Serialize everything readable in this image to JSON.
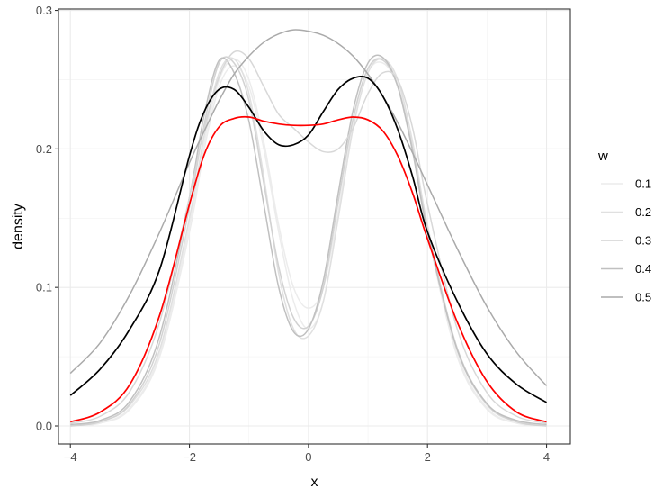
{
  "chart_data": {
    "type": "line",
    "xlabel": "x",
    "ylabel": "density",
    "xlim": [
      -4.2,
      4.4
    ],
    "ylim": [
      -0.013,
      0.301
    ],
    "x_ticks": [
      -4,
      -2,
      0,
      2,
      4
    ],
    "x_tick_labels": [
      "−4",
      "−2",
      "0",
      "2",
      "4"
    ],
    "y_ticks": [
      0.0,
      0.1,
      0.2,
      0.3
    ],
    "y_tick_labels": [
      "0.0",
      "0.1",
      "0.2",
      "0.3"
    ],
    "grid": true,
    "legend": {
      "title": "w",
      "position": "right",
      "entries": [
        {
          "label": "0.1",
          "color": "#ececec"
        },
        {
          "label": "0.2",
          "color": "#e0e0e0"
        },
        {
          "label": "0.3",
          "color": "#d2d2d2"
        },
        {
          "label": "0.4",
          "color": "#c0c0c0"
        },
        {
          "label": "0.5",
          "color": "#aaaaaa"
        }
      ]
    },
    "x": [
      -4,
      -3.5,
      -3,
      -2.5,
      -2,
      -1.75,
      -1.5,
      -1.25,
      -1,
      -0.75,
      -0.5,
      -0.25,
      0,
      0.25,
      0.5,
      0.75,
      1,
      1.25,
      1.5,
      1.75,
      2,
      2.5,
      3,
      3.5,
      4
    ],
    "series": [
      {
        "w": "0.1",
        "color": "#ececec",
        "values": [
          0.0,
          0.002,
          0.012,
          0.05,
          0.14,
          0.2,
          0.245,
          0.26,
          0.245,
          0.2,
          0.14,
          0.09,
          0.07,
          0.09,
          0.15,
          0.215,
          0.255,
          0.262,
          0.245,
          0.2,
          0.14,
          0.05,
          0.012,
          0.002,
          0.0
        ]
      },
      {
        "w": "0.1",
        "color": "#ececec",
        "values": [
          0.0,
          0.002,
          0.013,
          0.052,
          0.145,
          0.205,
          0.25,
          0.265,
          0.25,
          0.205,
          0.145,
          0.1,
          0.085,
          0.1,
          0.155,
          0.22,
          0.258,
          0.265,
          0.248,
          0.203,
          0.143,
          0.052,
          0.013,
          0.002,
          0.0
        ]
      },
      {
        "w": "0.2",
        "color": "#e0e0e0",
        "values": [
          0.0,
          0.003,
          0.015,
          0.055,
          0.15,
          0.21,
          0.255,
          0.265,
          0.24,
          0.18,
          0.11,
          0.07,
          0.065,
          0.09,
          0.15,
          0.215,
          0.255,
          0.265,
          0.25,
          0.205,
          0.145,
          0.055,
          0.015,
          0.003,
          0.0
        ]
      },
      {
        "w": "0.3",
        "color": "#d2d2d2",
        "values": [
          0.0,
          0.003,
          0.016,
          0.06,
          0.158,
          0.218,
          0.262,
          0.262,
          0.235,
          0.175,
          0.115,
          0.078,
          0.072,
          0.1,
          0.162,
          0.222,
          0.258,
          0.264,
          0.245,
          0.2,
          0.142,
          0.056,
          0.016,
          0.003,
          0.0
        ]
      },
      {
        "w": "0.4",
        "color": "#c0c0c0",
        "values": [
          0.001,
          0.004,
          0.018,
          0.065,
          0.165,
          0.225,
          0.264,
          0.255,
          0.22,
          0.16,
          0.1,
          0.068,
          0.07,
          0.105,
          0.168,
          0.228,
          0.262,
          0.266,
          0.245,
          0.198,
          0.14,
          0.055,
          0.016,
          0.004,
          0.001
        ]
      },
      {
        "w": "0.4",
        "color": "#d8d8d8",
        "values": [
          0.002,
          0.007,
          0.025,
          0.075,
          0.165,
          0.215,
          0.252,
          0.27,
          0.265,
          0.245,
          0.225,
          0.215,
          0.205,
          0.198,
          0.2,
          0.215,
          0.24,
          0.255,
          0.25,
          0.215,
          0.16,
          0.07,
          0.024,
          0.007,
          0.002
        ]
      },
      {
        "w": "0.5",
        "color": "#aaaaaa",
        "values": [
          0.038,
          0.06,
          0.095,
          0.14,
          0.19,
          0.213,
          0.235,
          0.254,
          0.267,
          0.277,
          0.283,
          0.286,
          0.285,
          0.282,
          0.276,
          0.267,
          0.254,
          0.238,
          0.219,
          0.197,
          0.174,
          0.128,
          0.086,
          0.053,
          0.029
        ]
      },
      {
        "w": "",
        "color": "#000000",
        "values": [
          0.022,
          0.041,
          0.07,
          0.113,
          0.195,
          0.227,
          0.243,
          0.243,
          0.23,
          0.213,
          0.203,
          0.203,
          0.21,
          0.227,
          0.243,
          0.251,
          0.251,
          0.238,
          0.214,
          0.18,
          0.14,
          0.09,
          0.052,
          0.03,
          0.017
        ]
      },
      {
        "w": "",
        "color": "#ff0000",
        "values": [
          0.003,
          0.01,
          0.03,
          0.08,
          0.16,
          0.196,
          0.216,
          0.222,
          0.223,
          0.22,
          0.218,
          0.217,
          0.217,
          0.218,
          0.221,
          0.223,
          0.221,
          0.213,
          0.195,
          0.168,
          0.135,
          0.075,
          0.032,
          0.01,
          0.003
        ]
      }
    ]
  }
}
